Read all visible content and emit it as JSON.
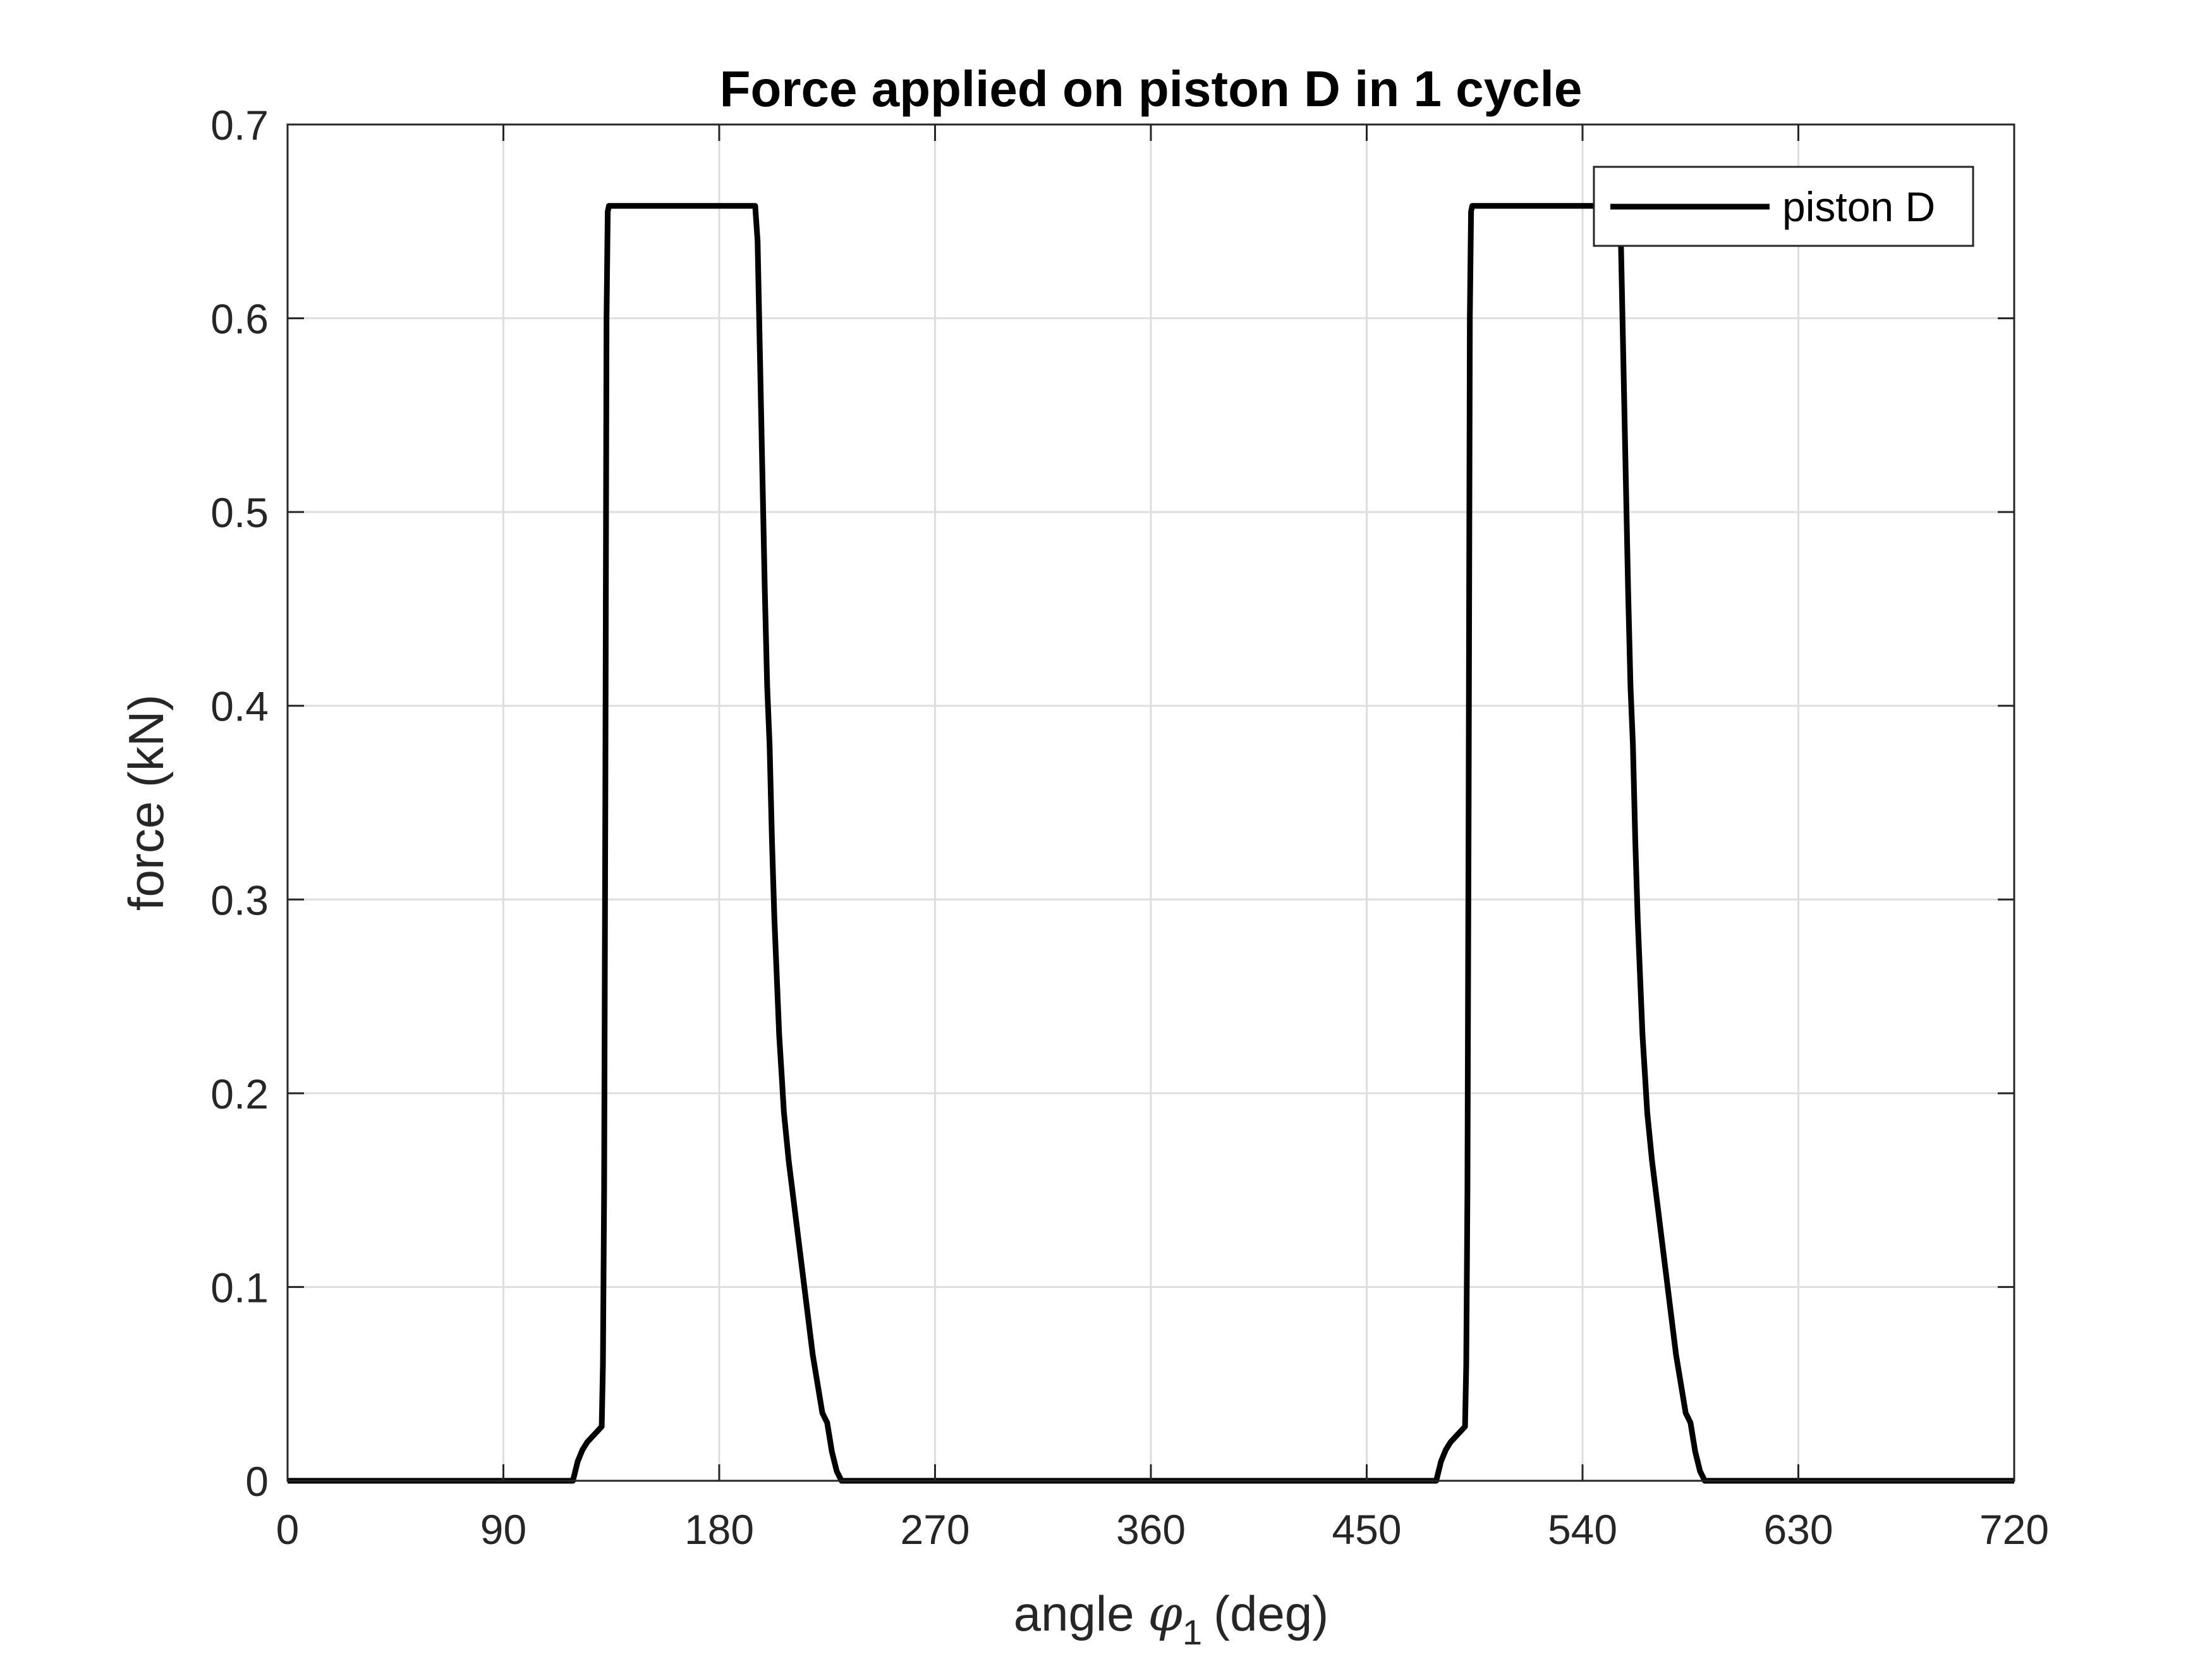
{
  "chart_data": {
    "type": "line",
    "title": "Force applied on piston D in 1 cycle",
    "xlabel": "angle",
    "xlabel_symbol": "φ",
    "xlabel_subscript": "1",
    "xlabel_unit": "(deg)",
    "ylabel": "force (kN)",
    "xlim": [
      0,
      720
    ],
    "ylim": [
      0,
      0.7
    ],
    "xticks": [
      0,
      90,
      180,
      270,
      360,
      450,
      540,
      630,
      720
    ],
    "yticks": [
      0,
      0.1,
      0.2,
      0.3,
      0.4,
      0.5,
      0.6,
      0.7
    ],
    "xtick_labels": [
      "0",
      "90",
      "180",
      "270",
      "360",
      "450",
      "540",
      "630",
      "720"
    ],
    "ytick_labels": [
      "0",
      "0.1",
      "0.2",
      "0.3",
      "0.4",
      "0.5",
      "0.6",
      "0.7"
    ],
    "grid": true,
    "legend_position": "top-right",
    "series": [
      {
        "name": "piston D",
        "color": "#000000",
        "x": [
          0,
          119,
          121,
          123,
          125,
          128,
          131,
          131.5,
          132,
          132.5,
          133,
          133.5,
          134,
          195,
          196,
          197,
          198,
          199,
          200,
          201,
          202,
          203,
          204,
          205,
          206,
          207,
          209,
          211,
          213,
          215,
          217,
          219,
          221,
          223,
          225,
          227,
          229,
          231,
          232,
          233,
          234,
          235,
          360,
          479,
          481,
          483,
          485,
          488,
          491,
          491.5,
          492,
          492.5,
          493,
          493.5,
          494,
          555,
          556,
          557,
          558,
          559,
          560,
          561,
          562,
          563,
          564,
          565,
          566,
          567,
          569,
          571,
          573,
          575,
          577,
          579,
          581,
          583,
          585,
          587,
          589,
          591,
          592,
          593,
          594,
          595,
          720
        ],
        "y": [
          0,
          0,
          0.01,
          0.016,
          0.02,
          0.024,
          0.028,
          0.06,
          0.15,
          0.35,
          0.6,
          0.655,
          0.658,
          0.658,
          0.64,
          0.58,
          0.52,
          0.46,
          0.41,
          0.38,
          0.33,
          0.29,
          0.26,
          0.23,
          0.21,
          0.19,
          0.165,
          0.145,
          0.125,
          0.105,
          0.085,
          0.065,
          0.05,
          0.035,
          0.03,
          0.015,
          0.005,
          0,
          0,
          0,
          0,
          0,
          0,
          0,
          0.01,
          0.016,
          0.02,
          0.024,
          0.028,
          0.06,
          0.15,
          0.35,
          0.6,
          0.655,
          0.658,
          0.658,
          0.64,
          0.58,
          0.52,
          0.46,
          0.41,
          0.38,
          0.33,
          0.29,
          0.26,
          0.23,
          0.21,
          0.19,
          0.165,
          0.145,
          0.125,
          0.105,
          0.085,
          0.065,
          0.05,
          0.035,
          0.03,
          0.015,
          0.005,
          0,
          0,
          0,
          0,
          0,
          0
        ]
      }
    ]
  }
}
